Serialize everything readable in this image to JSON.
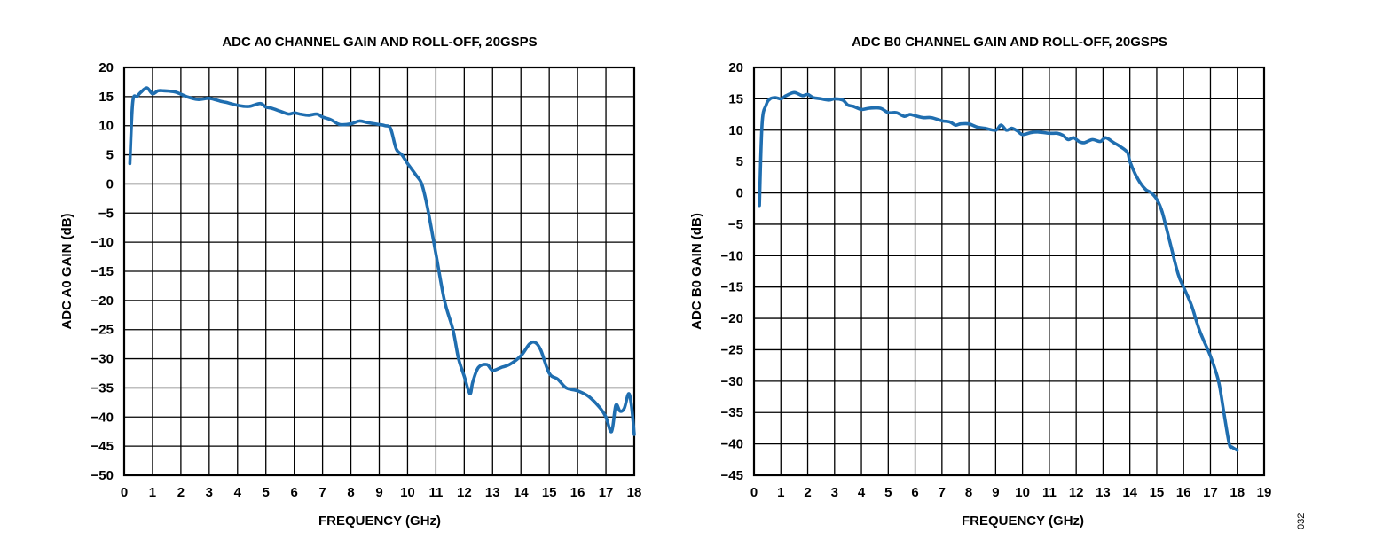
{
  "figure_number": "032",
  "chart_data": [
    {
      "type": "line",
      "title": "ADC A0 CHANNEL GAIN AND ROLL-OFF, 20GSPS",
      "xlabel": "FREQUENCY (GHz)",
      "ylabel": "ADC A0 GAIN (dB)",
      "xlim": [
        0,
        18
      ],
      "ylim": [
        -50,
        20
      ],
      "xticks": [
        0,
        1,
        2,
        3,
        4,
        5,
        6,
        7,
        8,
        9,
        10,
        11,
        12,
        13,
        14,
        15,
        16,
        17,
        18
      ],
      "yticks": [
        20,
        15,
        10,
        5,
        0,
        -5,
        -10,
        -15,
        -20,
        -25,
        -30,
        -35,
        -40,
        -45,
        -50
      ],
      "xtick_labels": [
        "0",
        "1",
        "2",
        "3",
        "4",
        "5",
        "6",
        "7",
        "8",
        "9",
        "10",
        "11",
        "12",
        "13",
        "14",
        "15",
        "16",
        "17",
        "18"
      ],
      "ytick_labels": [
        "20",
        "15",
        "10",
        "5",
        "0",
        "−5",
        "−10",
        "−15",
        "−20",
        "−25",
        "−30",
        "−35",
        "−40",
        "−45",
        "−50"
      ],
      "grid": true,
      "line_color": "#1f6eb0",
      "series": [
        {
          "x": [
            0.2,
            0.3,
            0.45,
            0.6,
            0.8,
            1.0,
            1.2,
            1.4,
            1.8,
            2.2,
            2.6,
            3.0,
            3.4,
            3.6,
            4.0,
            4.4,
            4.8,
            5.0,
            5.2,
            5.5,
            5.8,
            6.0,
            6.2,
            6.5,
            6.8,
            7.0,
            7.3,
            7.6,
            8.0,
            8.3,
            8.6,
            9.0,
            9.2,
            9.4,
            9.6,
            9.8,
            10.0,
            10.3,
            10.5,
            10.7,
            11.0,
            11.3,
            11.6,
            11.8,
            12.0,
            12.2,
            12.3,
            12.5,
            12.8,
            13.0,
            13.3,
            13.6,
            14.0,
            14.3,
            14.5,
            14.7,
            15.0,
            15.3,
            15.6,
            16.0,
            16.4,
            16.8,
            17.0,
            17.2,
            17.35,
            17.5,
            17.65,
            17.8,
            17.9,
            18.0
          ],
          "y": [
            3.5,
            14,
            15,
            15.8,
            16.5,
            15.5,
            16,
            16,
            15.8,
            15,
            14.5,
            14.7,
            14.2,
            14,
            13.5,
            13.3,
            13.8,
            13.2,
            13,
            12.5,
            12,
            12.2,
            12,
            11.8,
            12,
            11.5,
            11,
            10.2,
            10.3,
            10.8,
            10.5,
            10.2,
            10,
            9.5,
            6,
            5,
            3.5,
            1.5,
            0,
            -4,
            -12,
            -20,
            -25,
            -30,
            -33,
            -36,
            -34,
            -31.5,
            -31,
            -32,
            -31.5,
            -31,
            -29.5,
            -27.5,
            -27.2,
            -28.5,
            -32.5,
            -33.5,
            -35,
            -35.5,
            -36.5,
            -38.5,
            -40,
            -42.5,
            -38,
            -39,
            -38.5,
            -36,
            -38,
            -43
          ]
        }
      ]
    },
    {
      "type": "line",
      "title": "ADC B0 CHANNEL GAIN AND ROLL-OFF, 20GSPS",
      "xlabel": "FREQUENCY (GHz)",
      "ylabel": "ADC B0 GAIN (dB)",
      "xlim": [
        0,
        19
      ],
      "ylim": [
        -45,
        20
      ],
      "xticks": [
        0,
        1,
        2,
        3,
        4,
        5,
        6,
        7,
        8,
        9,
        10,
        11,
        12,
        13,
        14,
        15,
        16,
        17,
        18,
        19
      ],
      "yticks": [
        20,
        15,
        10,
        5,
        0,
        -5,
        -10,
        -15,
        -20,
        -25,
        -30,
        -35,
        -40,
        -45
      ],
      "xtick_labels": [
        "0",
        "1",
        "2",
        "3",
        "4",
        "5",
        "6",
        "7",
        "8",
        "9",
        "10",
        "11",
        "12",
        "13",
        "14",
        "15",
        "16",
        "17",
        "18",
        "19"
      ],
      "ytick_labels": [
        "20",
        "15",
        "10",
        "5",
        "0",
        "−5",
        "−10",
        "−15",
        "−20",
        "−25",
        "−30",
        "−35",
        "−40",
        "−45"
      ],
      "grid": true,
      "line_color": "#1f6eb0",
      "series": [
        {
          "x": [
            0.2,
            0.3,
            0.45,
            0.6,
            0.8,
            1.0,
            1.2,
            1.5,
            1.8,
            2.0,
            2.2,
            2.5,
            2.8,
            3.0,
            3.3,
            3.5,
            3.7,
            4.0,
            4.3,
            4.7,
            5.0,
            5.3,
            5.6,
            5.8,
            6.0,
            6.3,
            6.6,
            7.0,
            7.3,
            7.5,
            7.7,
            8.0,
            8.3,
            8.6,
            9.0,
            9.2,
            9.4,
            9.6,
            9.8,
            10.0,
            10.3,
            10.6,
            11.0,
            11.3,
            11.5,
            11.7,
            11.9,
            12.1,
            12.3,
            12.6,
            12.9,
            13.1,
            13.4,
            13.6,
            13.9,
            14.0,
            14.2,
            14.4,
            14.6,
            14.8,
            15.0,
            15.2,
            15.5,
            15.8,
            16.0,
            16.3,
            16.6,
            17.0,
            17.3,
            17.5,
            17.7,
            17.8,
            18.0
          ],
          "y": [
            -2,
            11,
            14,
            15,
            15.2,
            15,
            15.5,
            16,
            15.5,
            15.7,
            15.2,
            15,
            14.8,
            15,
            14.8,
            14,
            13.8,
            13.3,
            13.5,
            13.5,
            12.8,
            12.8,
            12.2,
            12.5,
            12.3,
            12,
            12,
            11.5,
            11.3,
            10.8,
            11,
            11,
            10.5,
            10.3,
            10,
            10.8,
            10,
            10.3,
            9.9,
            9.3,
            9.6,
            9.7,
            9.5,
            9.5,
            9.2,
            8.5,
            8.8,
            8.2,
            8.0,
            8.5,
            8.2,
            8.8,
            8,
            7.5,
            6.5,
            5,
            3,
            1.5,
            0.5,
            0,
            -1,
            -3,
            -8,
            -13,
            -15,
            -18,
            -22,
            -26,
            -30,
            -35,
            -40,
            -40.5,
            -41
          ]
        }
      ]
    }
  ]
}
